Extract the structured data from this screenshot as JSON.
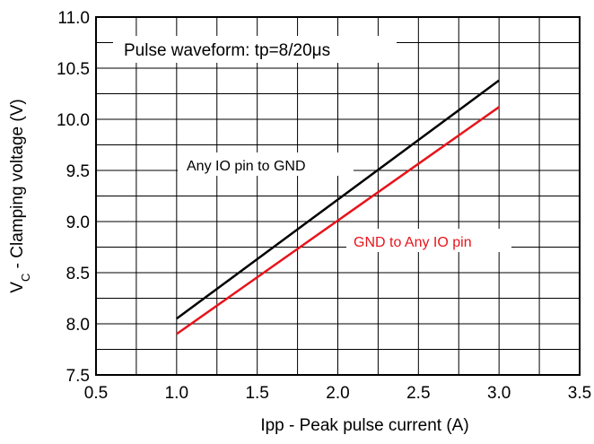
{
  "chart_data": {
    "type": "line",
    "xlabel": "Ipp - Peak pulse current (A)",
    "ylabel_main": "V",
    "ylabel_sub": "C",
    "ylabel_rest": " - Clamping voltage (V)",
    "xlim": [
      0.5,
      3.5
    ],
    "ylim": [
      7.5,
      11.0
    ],
    "x_ticks": [
      "0.5",
      "1.0",
      "1.5",
      "2.0",
      "2.5",
      "3.0",
      "3.5"
    ],
    "y_ticks": [
      "7.5",
      "8.0",
      "8.5",
      "9.0",
      "9.5",
      "10.0",
      "10.5",
      "11.0"
    ],
    "grid": true,
    "series": [
      {
        "name": "Any IO pin to GND",
        "color": "#000000",
        "x": [
          1.0,
          3.0
        ],
        "values": [
          8.05,
          10.38
        ]
      },
      {
        "name": "GND to Any IO pin",
        "color": "#e8141b",
        "x": [
          1.0,
          3.0
        ],
        "values": [
          7.9,
          10.12
        ]
      }
    ],
    "annotations": {
      "waveform": "Pulse waveform: tp=8/20μs"
    }
  }
}
